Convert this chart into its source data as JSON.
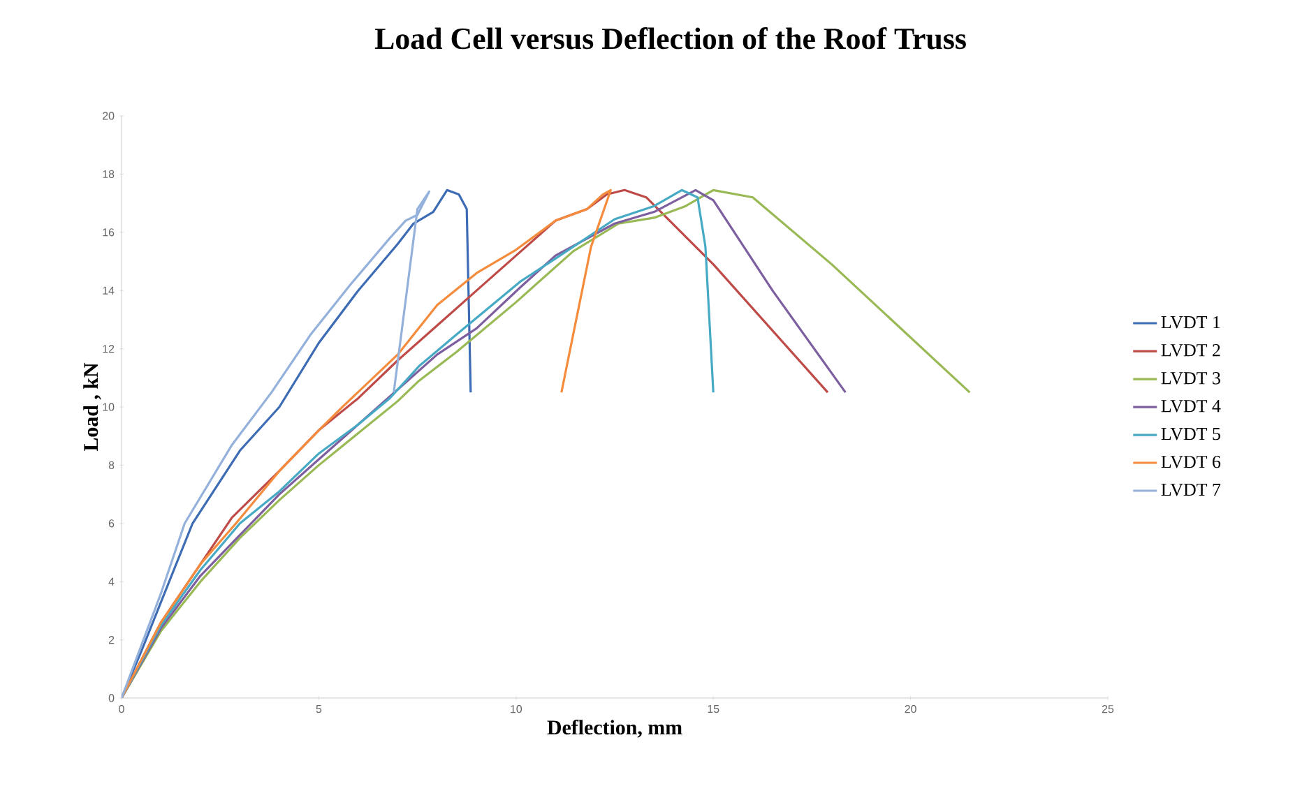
{
  "chart_data": {
    "type": "line",
    "title": "Load Cell versus Deflection of the Roof Truss",
    "xlabel": "Deflection, mm",
    "ylabel": "Load , kN",
    "xlim": [
      0,
      25
    ],
    "ylim": [
      0,
      20
    ],
    "xticks": [
      0,
      5,
      10,
      15,
      20,
      25
    ],
    "yticks": [
      0,
      2,
      4,
      6,
      8,
      10,
      12,
      14,
      16,
      18,
      20
    ],
    "legend": "right",
    "series": [
      {
        "name": "LVDT 1",
        "color": "#3d6cb5",
        "x": [
          0,
          0.5,
          1,
          1.8,
          3,
          4,
          5,
          6,
          7,
          7.4,
          7.9,
          8.25,
          8.55,
          8.75,
          8.85
        ],
        "values": [
          0,
          1.6,
          3.3,
          6,
          8.5,
          10,
          12.2,
          14,
          15.6,
          16.3,
          16.7,
          17.45,
          17.3,
          16.8,
          10.5
        ]
      },
      {
        "name": "LVDT 2",
        "color": "#be4b48",
        "x": [
          0,
          1,
          2,
          2.8,
          4,
          5,
          6,
          7,
          8,
          9,
          10,
          11,
          11.8,
          12.3,
          12.75,
          13.3,
          15,
          17.9
        ],
        "values": [
          0,
          2.6,
          4.6,
          6.2,
          7.8,
          9.2,
          10.3,
          11.6,
          12.8,
          14,
          15.2,
          16.4,
          16.8,
          17.3,
          17.45,
          17.2,
          14.9,
          10.5
        ]
      },
      {
        "name": "LVDT 3",
        "color": "#98b954",
        "x": [
          0,
          1,
          2,
          3,
          4,
          5,
          6,
          7,
          7.54,
          8.5,
          10,
          11.45,
          12.6,
          13.5,
          14.3,
          15,
          16,
          18,
          21.5
        ],
        "values": [
          0,
          2.3,
          4,
          5.5,
          6.8,
          8,
          9.1,
          10.2,
          10.9,
          11.9,
          13.6,
          15.35,
          16.3,
          16.5,
          16.9,
          17.45,
          17.2,
          14.9,
          10.5
        ]
      },
      {
        "name": "LVDT 4",
        "color": "#7d5fa0",
        "x": [
          0,
          1,
          2,
          3,
          4,
          5,
          6,
          7,
          8,
          9,
          10.1,
          11,
          12.5,
          13.5,
          14.55,
          15,
          16.5,
          18.35
        ],
        "values": [
          0,
          2.4,
          4.2,
          5.6,
          7,
          8.2,
          9.4,
          10.6,
          11.8,
          12.7,
          14.1,
          15.2,
          16.3,
          16.7,
          17.45,
          17.1,
          14,
          10.5
        ]
      },
      {
        "name": "LVDT 5",
        "color": "#46aac5",
        "x": [
          0,
          1,
          2,
          3,
          4,
          5,
          6,
          6.8,
          7.54,
          8.5,
          10.1,
          11,
          12.5,
          13.5,
          14.2,
          14.6,
          14.8,
          15
        ],
        "values": [
          0,
          2.5,
          4.4,
          6,
          7.1,
          8.4,
          9.4,
          10.3,
          11.4,
          12.5,
          14.3,
          15.1,
          16.45,
          16.9,
          17.45,
          17.2,
          15.5,
          10.5
        ]
      },
      {
        "name": "LVDT 6",
        "color": "#f58b3c",
        "x": [
          0,
          1,
          2,
          2.9,
          4,
          5,
          5.6,
          7,
          8,
          9,
          10,
          11,
          11.8,
          12.2,
          12.4,
          11.9,
          11.15
        ],
        "values": [
          0,
          2.6,
          4.6,
          6,
          7.8,
          9.2,
          10,
          11.8,
          13.5,
          14.6,
          15.4,
          16.4,
          16.8,
          17.3,
          17.45,
          15.5,
          10.5
        ]
      },
      {
        "name": "LVDT 7",
        "color": "#94b1dc",
        "x": [
          0,
          0.5,
          1,
          1.6,
          2.8,
          3.8,
          4.8,
          5.8,
          6.8,
          7.2,
          7.5,
          7.8,
          7.5,
          6.9
        ],
        "values": [
          0,
          1.8,
          3.6,
          6,
          8.7,
          10.5,
          12.5,
          14.2,
          15.8,
          16.4,
          16.6,
          17.4,
          16.8,
          10.5
        ]
      }
    ]
  }
}
